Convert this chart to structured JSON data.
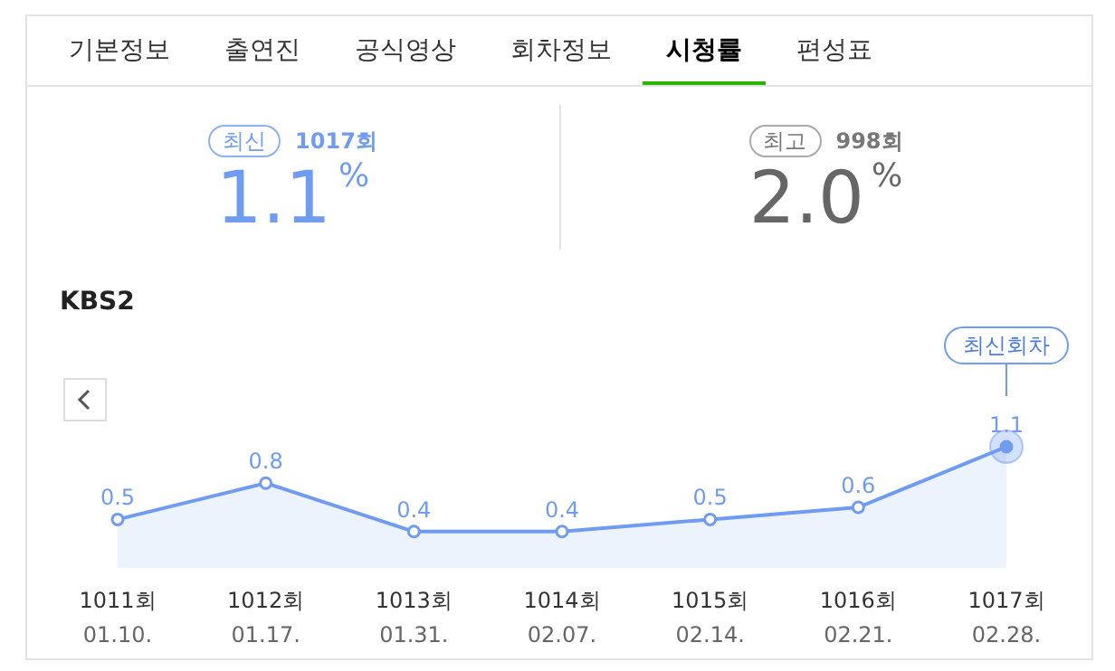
{
  "chart_data": {
    "type": "area",
    "subtitle": "KBS2",
    "categories": [
      "1011회\n01.10.",
      "1012회\n01.17.",
      "1013회\n01.31.",
      "1014회\n02.07.",
      "1015회\n02.14.",
      "1016회\n02.21.",
      "1017회\n02.28."
    ],
    "series": [
      {
        "color": "#6f9cf0",
        "values": [
          0.5,
          0.8,
          0.4,
          0.4,
          0.5,
          0.6,
          1.1
        ]
      }
    ],
    "data_labels": true,
    "marker": "circle",
    "annotations": [
      "기본정보",
      "출연진",
      "공식영상",
      "회차정보",
      "시청률",
      "편성표",
      "최신",
      "1017회",
      "1.1%",
      "최고",
      "998회",
      "2.0%",
      "최신회차"
    ]
  }
}
